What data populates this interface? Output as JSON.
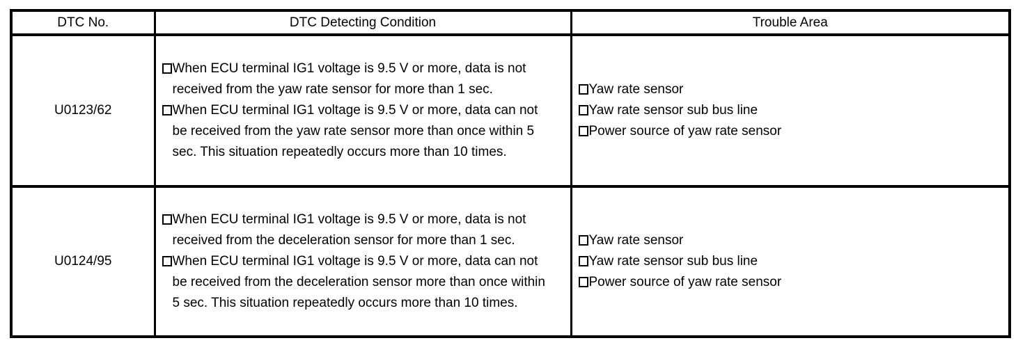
{
  "page": {
    "background_color": "#ffffff",
    "text_color": "#000000",
    "border_color": "#000000"
  },
  "table": {
    "headers": [
      "DTC No.",
      "DTC Detecting Condition",
      "Trouble Area"
    ],
    "bullet_style": "hollow-square",
    "rows": [
      {
        "dtc_no": "U0123/62",
        "conditions": [
          "When ECU terminal IG1 voltage is 9.5 V or more, data is not received from the yaw rate sensor for more than 1 sec.",
          "When ECU terminal IG1 voltage is 9.5 V or more, data can not be received from the yaw rate sensor more than once within 5 sec. This situation repeatedly occurs more than 10 times."
        ],
        "trouble_areas": [
          "Yaw rate sensor",
          "Yaw rate sensor sub bus line",
          "Power source of yaw rate sensor"
        ]
      },
      {
        "dtc_no": "U0124/95",
        "conditions": [
          "When ECU terminal IG1 voltage is 9.5 V or more, data is not received from the deceleration sensor for more than 1 sec.",
          "When ECU terminal IG1 voltage is 9.5 V or more, data can not be received from the deceleration sensor more than once within 5 sec. This situation repeatedly occurs more than 10 times."
        ],
        "trouble_areas": [
          "Yaw rate sensor",
          "Yaw rate sensor sub bus line",
          "Power source of yaw rate sensor"
        ]
      }
    ]
  }
}
